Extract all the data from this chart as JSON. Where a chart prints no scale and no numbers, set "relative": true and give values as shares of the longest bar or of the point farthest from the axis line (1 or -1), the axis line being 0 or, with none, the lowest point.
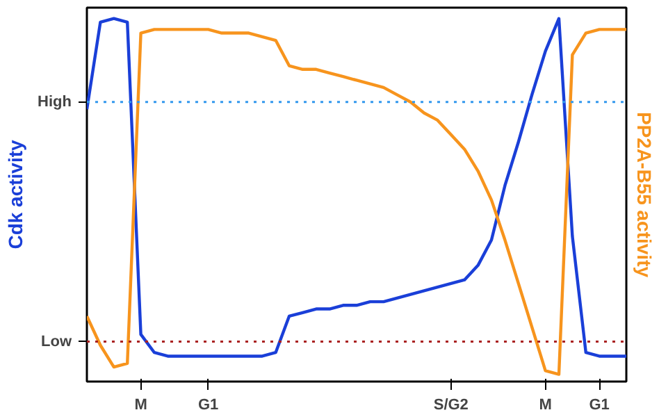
{
  "chart_data": {
    "type": "line",
    "relative": true,
    "ylabel": "Cdk activity",
    "y2label": "PP2A-B55 activity",
    "categories": [
      null,
      null,
      null,
      null,
      "M",
      null,
      null,
      null,
      null,
      "G1",
      null,
      null,
      null,
      null,
      null,
      null,
      null,
      null,
      null,
      null,
      null,
      null,
      null,
      null,
      null,
      null,
      null,
      "S/G2",
      null,
      null,
      null,
      null,
      null,
      null,
      "M",
      null,
      null,
      null,
      "G1",
      null,
      null
    ],
    "grid": false,
    "marker": "none",
    "line_style": "solid",
    "ref_lines": [
      {
        "axis": "y",
        "value": 0.77,
        "label": "High",
        "color": "#3399ee",
        "line_style": "dotted"
      },
      {
        "axis": "y",
        "value": 0.11,
        "label": "Low",
        "color": "#aa2222",
        "line_style": "dotted"
      }
    ],
    "series": [
      {
        "color": "#1a3fd8",
        "values": [
          0.75,
          0.99,
          1.0,
          0.99,
          0.13,
          0.08,
          0.07,
          0.07,
          0.07,
          0.07,
          0.07,
          0.07,
          0.07,
          0.07,
          0.08,
          0.18,
          0.19,
          0.2,
          0.2,
          0.21,
          0.21,
          0.22,
          0.22,
          0.23,
          0.24,
          0.25,
          0.26,
          0.27,
          0.28,
          0.32,
          0.39,
          0.54,
          0.66,
          0.79,
          0.91,
          1.0,
          0.4,
          0.08,
          0.07,
          0.07,
          0.07
        ]
      },
      {
        "color": "#f7941d",
        "values": [
          0.18,
          0.1,
          0.04,
          0.05,
          0.96,
          0.97,
          0.97,
          0.97,
          0.97,
          0.97,
          0.96,
          0.96,
          0.96,
          0.95,
          0.94,
          0.87,
          0.86,
          0.86,
          0.85,
          0.84,
          0.83,
          0.82,
          0.81,
          0.79,
          0.77,
          0.74,
          0.72,
          0.68,
          0.64,
          0.58,
          0.5,
          0.39,
          0.27,
          0.15,
          0.03,
          0.02,
          0.9,
          0.96,
          0.97,
          0.97,
          0.97
        ]
      }
    ]
  }
}
